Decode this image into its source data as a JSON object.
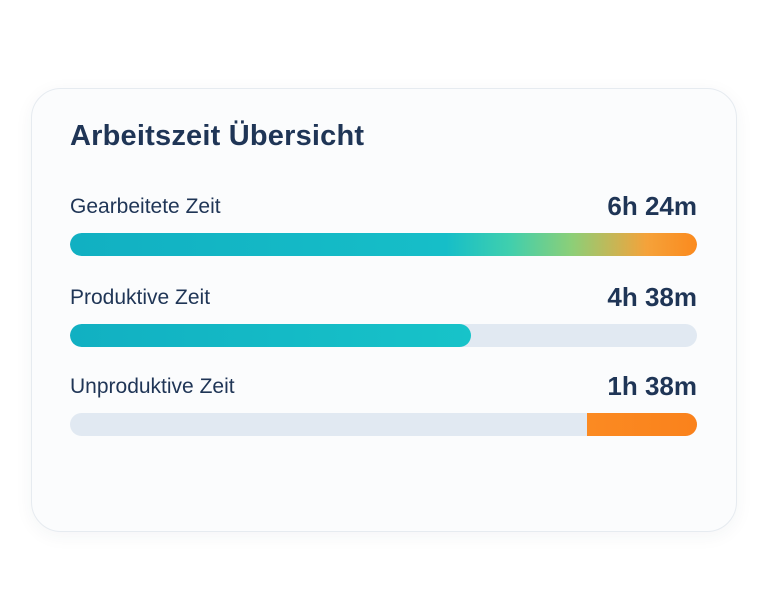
{
  "card": {
    "title": "Arbeitszeit Übersicht"
  },
  "metrics": [
    {
      "label": "Gearbeitete Zeit",
      "value": "6h 24m",
      "fill_fraction": 1.0,
      "fill_style": "teal-to-orange-gradient"
    },
    {
      "label": "Produktive Zeit",
      "value": "4h 38m",
      "fill_fraction": 0.64,
      "fill_style": "teal"
    },
    {
      "label": "Unproduktive Zeit",
      "value": "1h 38m",
      "fill_fraction": 0.175,
      "fill_style": "orange-from-right"
    }
  ],
  "colors": {
    "title_text": "#1f3556",
    "teal": "#14b8c4",
    "orange": "#fb8a1e",
    "track": "#e1e9f2",
    "card_background": "#fbfcfd"
  }
}
